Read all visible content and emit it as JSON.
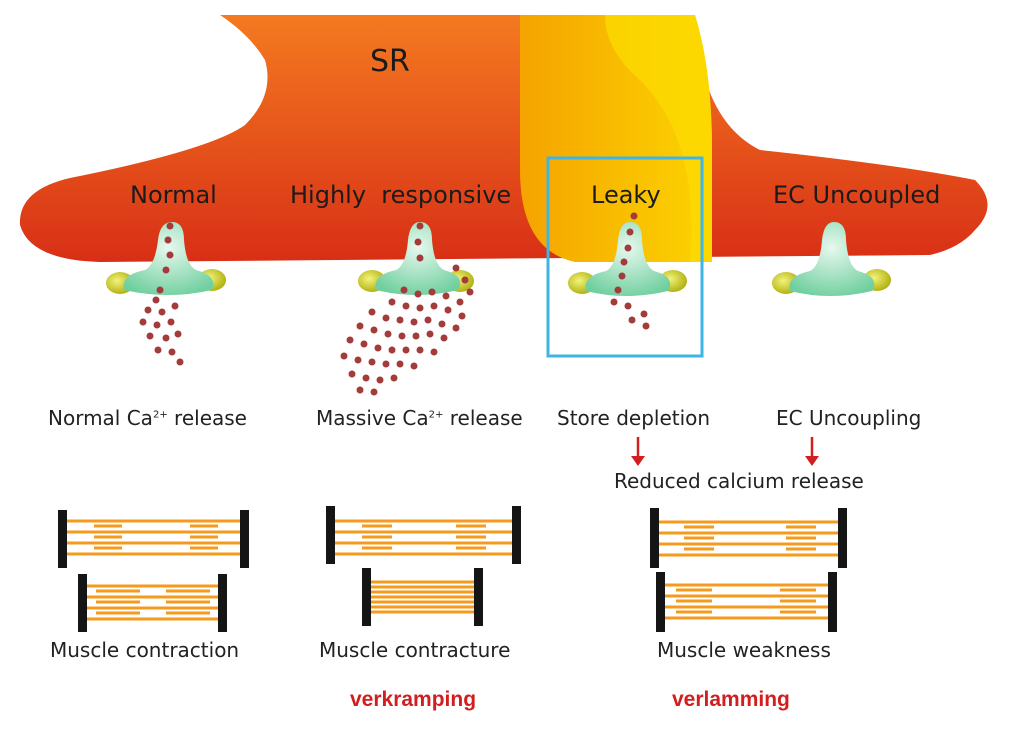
{
  "sr_label": "SR",
  "channels": [
    {
      "label": "Normal"
    },
    {
      "label": "Highly  responsive"
    },
    {
      "label": "Leaky"
    },
    {
      "label": "EC Uncoupled"
    }
  ],
  "release": [
    {
      "pre": "Normal Ca",
      "sup": "2+",
      "post": " release"
    },
    {
      "pre": "Massive Ca",
      "sup": "2+",
      "post": " release"
    },
    {
      "text": "Store depletion"
    },
    {
      "text": "EC Uncoupling"
    }
  ],
  "reduced_release": "Reduced calcium release",
  "outcomes": [
    "Muscle contraction",
    "Muscle contracture",
    "Muscle weakness"
  ],
  "dutch_terms": [
    "verkramping",
    "verlamming"
  ],
  "colors": {
    "sr_red": "#e4421a",
    "sr_orange": "#f47a20",
    "leak_yellow": "#f9c500",
    "channel_green": "#9ddfbd",
    "anchor_yellow": "#d9d928",
    "calcium": "#a33b3b",
    "highlight_box": "#3fb4e6",
    "arrow_red": "#d21e1e",
    "filament_orange": "#f49a1c"
  }
}
